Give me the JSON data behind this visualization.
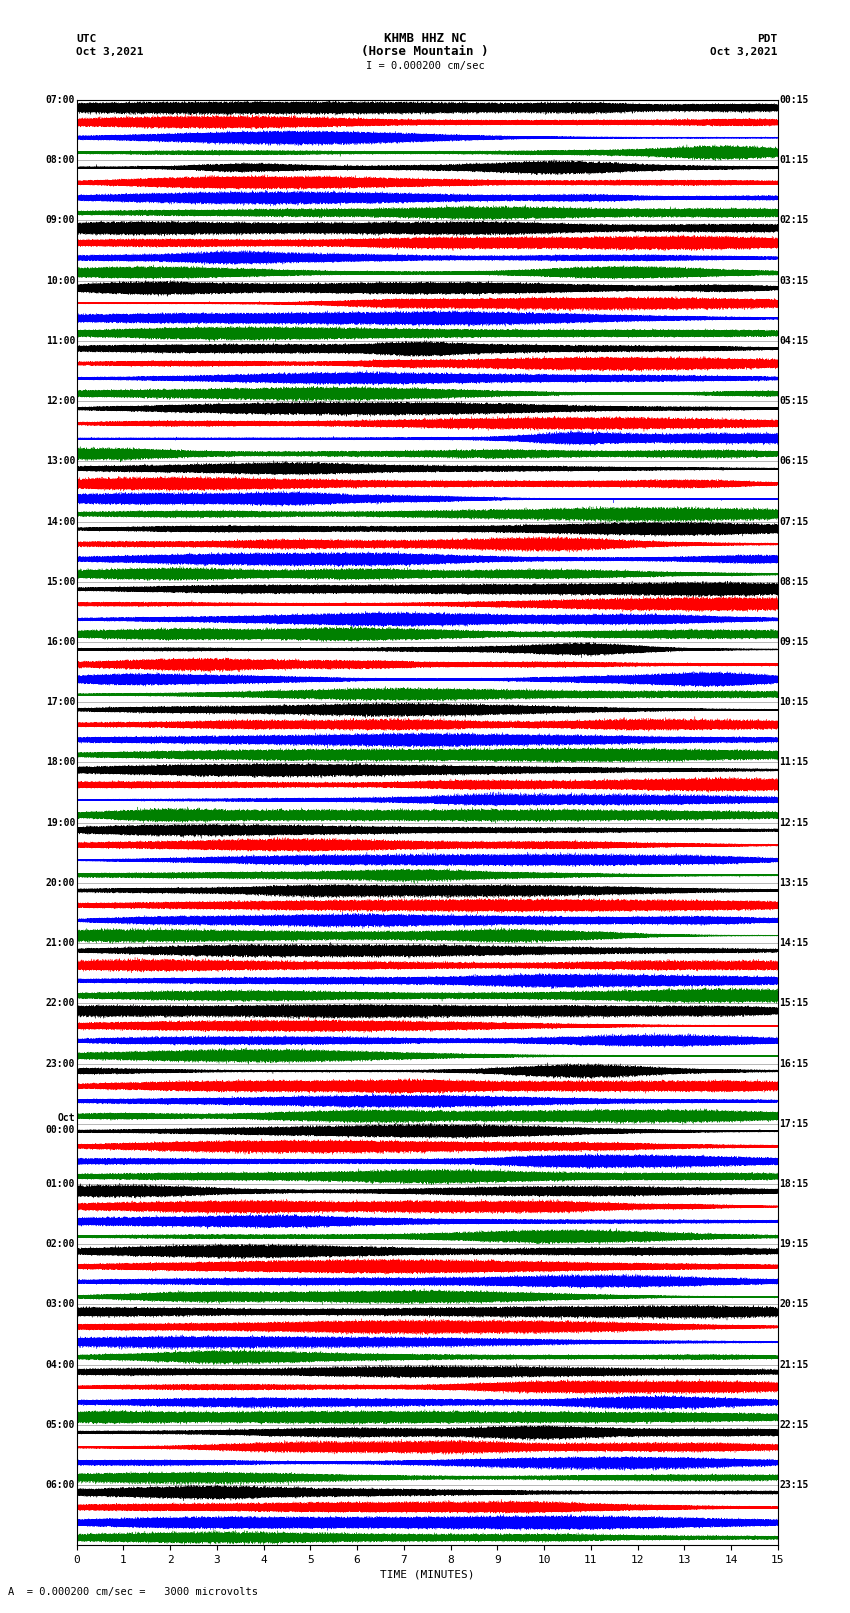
{
  "title_line1": "KHMB HHZ NC",
  "title_line2": "(Horse Mountain )",
  "scale_label": "I = 0.000200 cm/sec",
  "left_label_top": "UTC",
  "left_label_date": "Oct 3,2021",
  "right_label_top": "PDT",
  "right_label_date": "Oct 3,2021",
  "bottom_label": "TIME (MINUTES)",
  "bottom_note": "A  = 0.000200 cm/sec =   3000 microvolts",
  "xlabel_ticks": [
    0,
    1,
    2,
    3,
    4,
    5,
    6,
    7,
    8,
    9,
    10,
    11,
    12,
    13,
    14,
    15
  ],
  "utc_times": [
    "07:00",
    "08:00",
    "09:00",
    "10:00",
    "11:00",
    "12:00",
    "13:00",
    "14:00",
    "15:00",
    "16:00",
    "17:00",
    "18:00",
    "19:00",
    "20:00",
    "21:00",
    "22:00",
    "23:00",
    "Oct\n00:00",
    "01:00",
    "02:00",
    "03:00",
    "04:00",
    "05:00",
    "06:00"
  ],
  "pdt_times": [
    "00:15",
    "01:15",
    "02:15",
    "03:15",
    "04:15",
    "05:15",
    "06:15",
    "07:15",
    "08:15",
    "09:15",
    "10:15",
    "11:15",
    "12:15",
    "13:15",
    "14:15",
    "15:15",
    "16:15",
    "17:15",
    "18:15",
    "19:15",
    "20:15",
    "21:15",
    "22:15",
    "23:15"
  ],
  "n_rows": 24,
  "traces_per_row": 4,
  "minutes": 15,
  "sample_rate": 200,
  "colors": [
    "black",
    "red",
    "blue",
    "green"
  ],
  "bg_color": "white",
  "fig_width": 8.5,
  "fig_height": 16.13,
  "dpi": 100
}
